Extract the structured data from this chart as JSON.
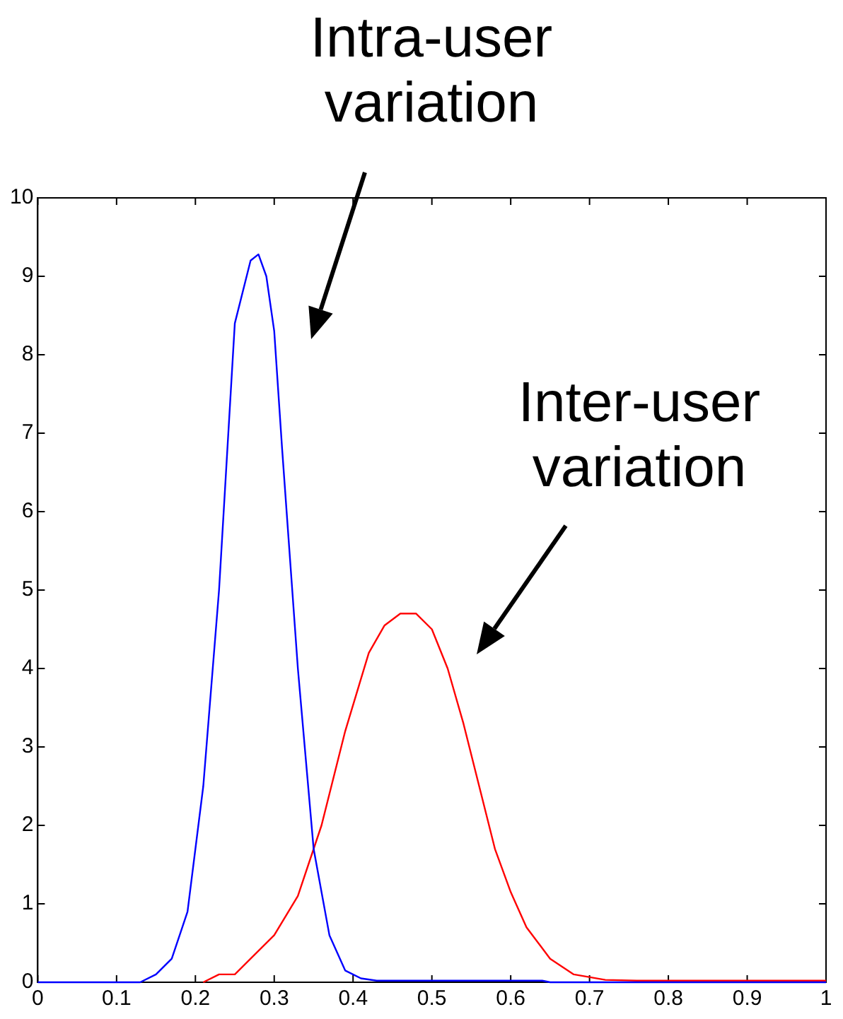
{
  "chart_data": {
    "type": "line",
    "xlim": [
      0,
      1
    ],
    "xticks": [
      0,
      0.1,
      0.2,
      0.3,
      0.4,
      0.5,
      0.6,
      0.7,
      0.8,
      0.9,
      1
    ],
    "ylim": [
      0,
      10
    ],
    "yticks": [
      0,
      1,
      2,
      3,
      4,
      5,
      6,
      7,
      8,
      9,
      10
    ],
    "grid": false,
    "legend": false,
    "marker": "none",
    "line_style": "solid",
    "series": [
      {
        "color": "#0000ff",
        "x": [
          0,
          0.13,
          0.15,
          0.17,
          0.19,
          0.21,
          0.23,
          0.25,
          0.27,
          0.28,
          0.29,
          0.3,
          0.31,
          0.33,
          0.35,
          0.37,
          0.39,
          0.41,
          0.43,
          0.64,
          0.65,
          1
        ],
        "values": [
          0,
          0,
          0.1,
          0.3,
          0.9,
          2.5,
          5,
          8.4,
          9.2,
          9.28,
          9,
          8.3,
          6.8,
          4,
          1.7,
          0.6,
          0.15,
          0.05,
          0.02,
          0.02,
          0,
          0
        ]
      },
      {
        "color": "#ff0000",
        "x": [
          0.21,
          0.23,
          0.25,
          0.27,
          0.3,
          0.33,
          0.36,
          0.39,
          0.42,
          0.44,
          0.46,
          0.48,
          0.5,
          0.52,
          0.54,
          0.56,
          0.58,
          0.6,
          0.62,
          0.65,
          0.68,
          0.72,
          0.76,
          1
        ],
        "values": [
          0,
          0.1,
          0.1,
          0.3,
          0.6,
          1.1,
          2,
          3.2,
          4.2,
          4.55,
          4.7,
          4.7,
          4.5,
          4,
          3.3,
          2.5,
          1.7,
          1.15,
          0.7,
          0.3,
          0.1,
          0.03,
          0.02,
          0.02
        ]
      }
    ],
    "annotations": [
      "Intra-user variation",
      "Inter-user variation"
    ]
  }
}
